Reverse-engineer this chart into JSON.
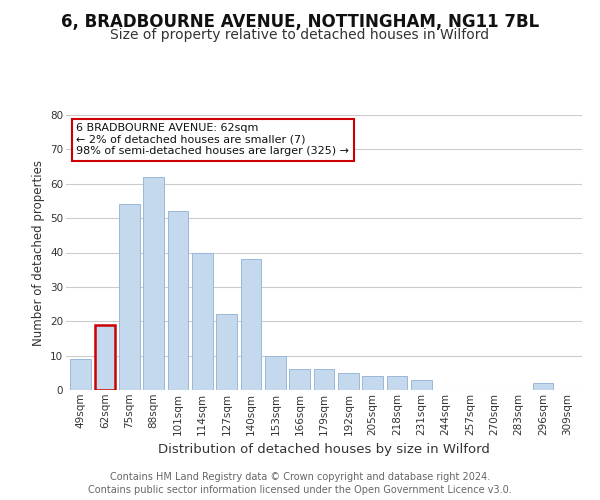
{
  "title": "6, BRADBOURNE AVENUE, NOTTINGHAM, NG11 7BL",
  "subtitle": "Size of property relative to detached houses in Wilford",
  "xlabel": "Distribution of detached houses by size in Wilford",
  "ylabel": "Number of detached properties",
  "bar_labels": [
    "49sqm",
    "62sqm",
    "75sqm",
    "88sqm",
    "101sqm",
    "114sqm",
    "127sqm",
    "140sqm",
    "153sqm",
    "166sqm",
    "179sqm",
    "192sqm",
    "205sqm",
    "218sqm",
    "231sqm",
    "244sqm",
    "257sqm",
    "270sqm",
    "283sqm",
    "296sqm",
    "309sqm"
  ],
  "bar_values": [
    9,
    19,
    54,
    62,
    52,
    40,
    22,
    38,
    10,
    6,
    6,
    5,
    4,
    4,
    3,
    0,
    0,
    0,
    0,
    2,
    0
  ],
  "highlight_bar_index": 1,
  "bar_color": "#c5d9ee",
  "highlight_bar_edge_color": "#cc0000",
  "bar_edge_color": "#9ab8d8",
  "ylim": [
    0,
    80
  ],
  "yticks": [
    0,
    10,
    20,
    30,
    40,
    50,
    60,
    70,
    80
  ],
  "annotation_title": "6 BRADBOURNE AVENUE: 62sqm",
  "annotation_line1": "← 2% of detached houses are smaller (7)",
  "annotation_line2": "98% of semi-detached houses are larger (325) →",
  "annotation_box_edge": "#cc0000",
  "footer_line1": "Contains HM Land Registry data © Crown copyright and database right 2024.",
  "footer_line2": "Contains public sector information licensed under the Open Government Licence v3.0.",
  "bg_color": "#ffffff",
  "plot_bg_color": "#ffffff",
  "grid_color": "#cccccc",
  "title_fontsize": 12,
  "subtitle_fontsize": 10,
  "xlabel_fontsize": 9.5,
  "ylabel_fontsize": 8.5,
  "tick_fontsize": 7.5,
  "footer_fontsize": 7,
  "ann_fontsize": 8
}
